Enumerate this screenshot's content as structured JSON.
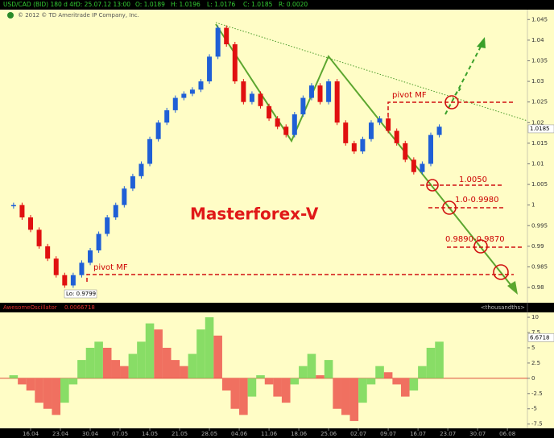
{
  "header": {
    "symbol": "USD/CAD (BID) 180 d 4h",
    "date": "D: 25.07.12 13:00",
    "open": "O: 1.0189",
    "high": "H: 1.0196",
    "low": "L: 1.0176",
    "close": "C: 1.0185",
    "range": "R: 0.0020",
    "copyright": "© 2012 © TD Ameritrade IP Company, Inc."
  },
  "chart_data": [
    {
      "type": "candlestick",
      "x": [
        -4,
        -2,
        0,
        2,
        4,
        6,
        8,
        10,
        12,
        14,
        16,
        18,
        20,
        22,
        24,
        26,
        28,
        30,
        32,
        34,
        36,
        38,
        40,
        42,
        44,
        46,
        48,
        50,
        52,
        54,
        56,
        58,
        60,
        62,
        64,
        66,
        68,
        70,
        72,
        74,
        76,
        78,
        80,
        82,
        84,
        86,
        88,
        90,
        92,
        94,
        96
      ],
      "values": [
        1.0,
        0.997,
        0.994,
        0.99,
        0.987,
        0.983,
        0.9805,
        0.983,
        0.986,
        0.989,
        0.993,
        0.997,
        1.0,
        1.004,
        1.007,
        1.01,
        1.016,
        1.02,
        1.023,
        1.026,
        1.027,
        1.028,
        1.03,
        1.036,
        1.043,
        1.039,
        1.03,
        1.025,
        1.027,
        1.024,
        1.021,
        1.019,
        1.017,
        1.022,
        1.026,
        1.029,
        1.025,
        1.03,
        1.02,
        1.015,
        1.013,
        1.016,
        1.02,
        1.021,
        1.018,
        1.015,
        1.011,
        1.008,
        1.01,
        1.017,
        1.019
      ],
      "up_color": "#1f5fd6",
      "down_color": "#e01010",
      "xlim": [
        -7.19,
        116.7
      ],
      "xticks": [
        {
          "value": 0,
          "label": "16.04"
        },
        {
          "value": 7,
          "label": "23.04"
        },
        {
          "value": 14,
          "label": "30.04"
        },
        {
          "value": 21,
          "label": "07.05"
        },
        {
          "value": 28,
          "label": "14.05"
        },
        {
          "value": 35,
          "label": "21.05"
        },
        {
          "value": 42,
          "label": "28.05"
        },
        {
          "value": 49,
          "label": "04.06"
        },
        {
          "value": 56,
          "label": "11.06"
        },
        {
          "value": 63,
          "label": "18.06"
        },
        {
          "value": 70,
          "label": "25.06"
        },
        {
          "value": 77,
          "label": "02.07"
        },
        {
          "value": 84,
          "label": "09.07"
        },
        {
          "value": 91,
          "label": "16.07"
        },
        {
          "value": 98,
          "label": "23.07"
        },
        {
          "value": 105,
          "label": "30.07"
        },
        {
          "value": 112,
          "label": "06.08"
        }
      ],
      "ylim": [
        0.9763,
        1.0474
      ],
      "yticks": [
        0.98,
        0.985,
        0.99,
        0.995,
        1,
        1.005,
        1.01,
        1.015,
        1.02,
        1.025,
        1.03,
        1.035,
        1.04,
        1.045
      ],
      "last_value": 1.0185,
      "annotations": {
        "brand": "Masterforex-V",
        "pivot_top": "pivot MF",
        "pivot_bottom": "pivot MF",
        "level_1": "1.0050",
        "level_2": "1.0-0.9980",
        "level_3": "0.9890-0.9870",
        "low": "Lo: 0.9799"
      }
    },
    {
      "type": "bar",
      "title": "AwesomeOscillator",
      "subtitle": "0.0066718",
      "units": "<thousandths>",
      "x": [
        -4,
        -2,
        0,
        2,
        4,
        6,
        8,
        10,
        12,
        14,
        16,
        18,
        20,
        22,
        24,
        26,
        28,
        30,
        32,
        34,
        36,
        38,
        40,
        42,
        44,
        46,
        48,
        50,
        52,
        54,
        56,
        58,
        60,
        62,
        64,
        66,
        68,
        70,
        72,
        74,
        76,
        78,
        80,
        82,
        84,
        86,
        88,
        90,
        92,
        94,
        96
      ],
      "values": [
        0.5,
        -1,
        -2,
        -4,
        -5,
        -6,
        -4,
        -1,
        3,
        5,
        6,
        5,
        3,
        2,
        4,
        6,
        9,
        8,
        5,
        3,
        2,
        4,
        8,
        10,
        7,
        -2,
        -5,
        -6,
        -3,
        0.5,
        -1,
        -3,
        -4,
        -1,
        2,
        4,
        0.5,
        3,
        -5,
        -6,
        -7,
        -4,
        -1,
        2,
        1,
        -1,
        -3,
        -2,
        2,
        5,
        6
      ],
      "up_color": "#88dd66",
      "down_color": "#f07060",
      "xlim": [
        -7.19,
        116.7
      ],
      "ylim": [
        -8.2,
        10.8
      ],
      "yticks": [
        -7.5,
        -5,
        -2.5,
        0,
        2.5,
        5,
        7.5,
        10
      ],
      "last_value": 6.6718
    }
  ]
}
